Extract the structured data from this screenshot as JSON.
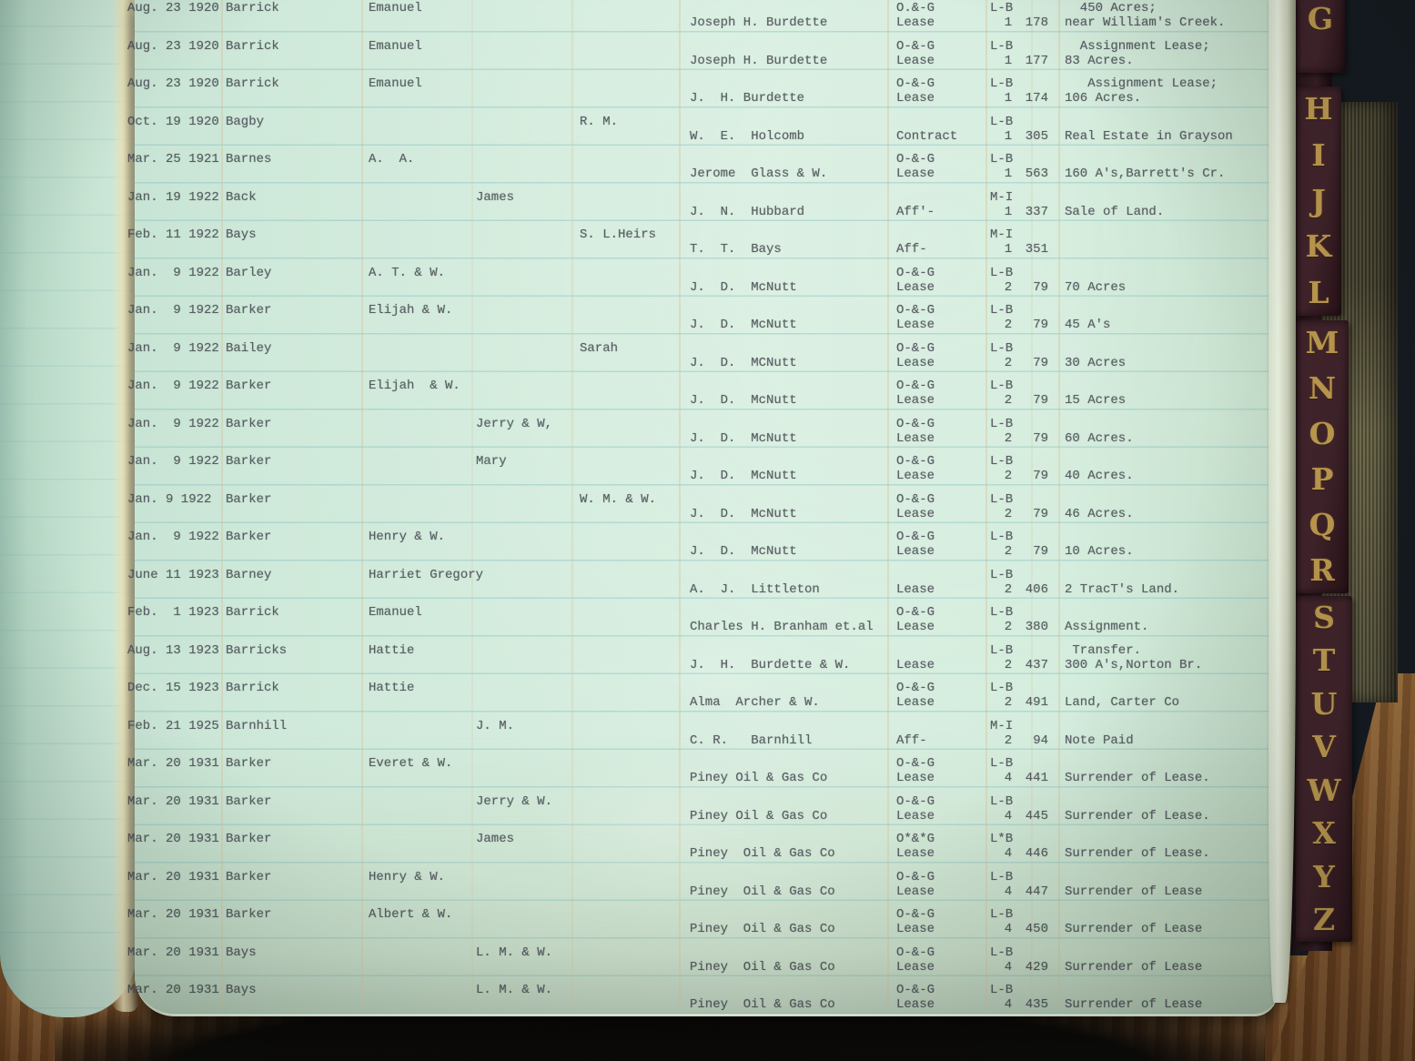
{
  "ledger": {
    "rows": [
      {
        "date": "Aug. 23 1920",
        "surname": "Barrick",
        "given_a": "Emanuel",
        "grantee": "Joseph H. Burdette",
        "instr1": "O.&-G",
        "instr2": "Lease",
        "book1": "L-B",
        "book2": "1",
        "page": "178",
        "d1": "  450 Acres;",
        "d2": "near William's Creek."
      },
      {
        "date": "Aug. 23 1920",
        "surname": "Barrick",
        "given_a": "Emanuel",
        "grantee": "Joseph H. Burdette",
        "instr1": "O-&-G",
        "instr2": "Lease",
        "book1": "L-B",
        "book2": "1",
        "page": "177",
        "d1": "  Assignment Lease;",
        "d2": "83 Acres."
      },
      {
        "date": "Aug. 23 1920",
        "surname": "Barrick",
        "given_a": "Emanuel",
        "grantee": "J.  H. Burdette",
        "instr1": "O-&-G",
        "instr2": "Lease",
        "book1": "L-B",
        "book2": "1",
        "page": "174",
        "d1": "   Assignment Lease;",
        "d2": "106 Acres."
      },
      {
        "date": "Oct. 19 1920",
        "surname": "Bagby",
        "given_c": "R. M.",
        "grantee": "W.  E.  Holcomb",
        "instr2": "Contract",
        "book1": "L-B",
        "book2": "1",
        "page": "305",
        "d2": "Real Estate in Grayson"
      },
      {
        "date": "Mar. 25 1921",
        "surname": "Barnes",
        "given_a": "A.  A.",
        "grantee": "Jerome  Glass & W.",
        "instr1": "O-&-G",
        "instr2": "Lease",
        "book1": "L-B",
        "book2": "1",
        "page": "563",
        "d2": "160 A's,Barrett's Cr."
      },
      {
        "date": "Jan. 19 1922",
        "surname": "Back",
        "given_b": "James",
        "grantee": "J.  N.  Hubbard",
        "instr2": "Aff'-",
        "book1": "M-I",
        "book2": "1",
        "page": "337",
        "d2": "Sale of Land."
      },
      {
        "date": "Feb. 11 1922",
        "surname": "Bays",
        "given_c": "S. L.Heirs",
        "grantee": "T.  T.  Bays",
        "instr2": "Aff-",
        "book1": "M-I",
        "book2": "1",
        "page": "351"
      },
      {
        "date": "Jan.  9 1922",
        "surname": "Barley",
        "given_a": "A. T. & W.",
        "grantee": "J.  D.  McNutt",
        "instr1": "O-&-G",
        "instr2": "Lease",
        "book1": "L-B",
        "book2": "2",
        "page": "79",
        "d2": "70 Acres"
      },
      {
        "date": "Jan.  9 1922",
        "surname": "Barker",
        "given_a": "Elijah & W.",
        "grantee": "J.  D.  McNutt",
        "instr1": "O-&-G",
        "instr2": "Lease",
        "book1": "L-B",
        "book2": "2",
        "page": "79",
        "d2": "45 A's"
      },
      {
        "date": "Jan.  9 1922",
        "surname": "Bailey",
        "given_c": "Sarah",
        "grantee": "J.  D.  MCNutt",
        "instr1": "O-&-G",
        "instr2": "Lease",
        "book1": "L-B",
        "book2": "2",
        "page": "79",
        "d2": "30 Acres"
      },
      {
        "date": "Jan.  9 1922",
        "surname": "Barker",
        "given_a": "Elijah  & W.",
        "grantee": "J.  D.  McNutt",
        "instr1": "O-&-G",
        "instr2": "Lease",
        "book1": "L-B",
        "book2": "2",
        "page": "79",
        "d2": "15 Acres"
      },
      {
        "date": "Jan.  9 1922",
        "surname": "Barker",
        "given_b": "Jerry & W,",
        "grantee": "J.  D.  McNutt",
        "instr1": "O-&-G",
        "instr2": "Lease",
        "book1": "L-B",
        "book2": "2",
        "page": "79",
        "d2": "60 Acres."
      },
      {
        "date": "Jan.  9 1922",
        "surname": "Barker",
        "given_b": "Mary",
        "grantee": "J.  D.  McNutt",
        "instr1": "O-&-G",
        "instr2": "Lease",
        "book1": "L-B",
        "book2": "2",
        "page": "79",
        "d2": "40 Acres."
      },
      {
        "date": "Jan. 9 1922",
        "surname": "Barker",
        "given_c": "W. M. & W.",
        "grantee": "J.  D.  McNutt",
        "instr1": "O-&-G",
        "instr2": "Lease",
        "book1": "L-B",
        "book2": "2",
        "page": "79",
        "d2": "46 Acres."
      },
      {
        "date": "Jan.  9 1922",
        "surname": "Barker",
        "given_a": "Henry & W.",
        "grantee": "J.  D.  McNutt",
        "instr1": "O-&-G",
        "instr2": "Lease",
        "book1": "L-B",
        "book2": "2",
        "page": "79",
        "d2": "10 Acres."
      },
      {
        "date": "June 11 1923",
        "surname": "Barney",
        "given_a": "Harriet Gregory",
        "grantee": "A.  J.  Littleton",
        "instr2": "Lease",
        "book1": "L-B",
        "book2": "2",
        "page": "406",
        "d2": "2 TracT's Land."
      },
      {
        "date": "Feb.  1 1923",
        "surname": "Barrick",
        "given_a": "Emanuel",
        "grantee": "Charles H. Branham et.al",
        "instr1": "O-&-G",
        "instr2": "Lease",
        "book1": "L-B",
        "book2": "2",
        "page": "380",
        "d2": "Assignment."
      },
      {
        "date": "Aug. 13 1923",
        "surname": "Barricks",
        "given_a": "Hattie",
        "grantee": "J.  H.  Burdette & W.",
        "instr2": "Lease",
        "book1": "L-B",
        "book2": "2",
        "page": "437",
        "d1": " Transfer.",
        "d2": "300 A's,Norton Br."
      },
      {
        "date": "Dec. 15 1923",
        "surname": "Barrick",
        "given_a": "Hattie",
        "grantee": "Alma  Archer & W.",
        "instr1": "O-&-G",
        "instr2": "Lease",
        "book1": "L-B",
        "book2": "2",
        "page": "491",
        "d2": "Land, Carter Co"
      },
      {
        "date": "Feb. 21 1925",
        "surname": "Barnhill",
        "given_b": "J. M.",
        "grantee": "C. R.   Barnhill",
        "instr2": "Aff-",
        "book1": "M-I",
        "book2": "2",
        "page": "94",
        "d2": "Note Paid"
      },
      {
        "date": "Mar. 20 1931",
        "surname": "Barker",
        "given_a": "Everet & W.",
        "grantee": "Piney Oil & Gas Co",
        "instr1": "O-&-G",
        "instr2": "Lease",
        "book1": "L-B",
        "book2": "4",
        "page": "441",
        "d2": "Surrender of Lease."
      },
      {
        "date": "Mar. 20 1931",
        "surname": "Barker",
        "given_b": "Jerry & W.",
        "grantee": "Piney Oil & Gas Co",
        "instr1": "O-&-G",
        "instr2": "Lease",
        "book1": "L-B",
        "book2": "4",
        "page": "445",
        "d2": "Surrender of Lease."
      },
      {
        "date": "Mar. 20 1931",
        "surname": "Barker",
        "given_b": "James",
        "grantee": "Piney  Oil & Gas Co",
        "instr1": "O*&*G",
        "instr2": "Lease",
        "book1": "L*B",
        "book2": "4",
        "page": "446",
        "d2": "Surrender of Lease."
      },
      {
        "date": "Mar. 20 1931",
        "surname": "Barker",
        "given_a": "Henry & W.",
        "grantee": "Piney  Oil & Gas Co",
        "instr1": "O-&-G",
        "instr2": "Lease",
        "book1": "L-B",
        "book2": "4",
        "page": "447",
        "d2": "Surrender of Lease"
      },
      {
        "date": "Mar. 20 1931",
        "surname": "Barker",
        "given_a": "Albert & W.",
        "grantee": "Piney  Oil & Gas Co",
        "instr1": "O-&-G",
        "instr2": "Lease",
        "book1": "L-B",
        "book2": "4",
        "page": "450",
        "d2": "Surrender of Lease"
      },
      {
        "date": "Mar. 20 1931",
        "surname": "Bays",
        "given_b": "L. M. & W.",
        "grantee": "Piney  Oil & Gas Co",
        "instr1": "O-&-G",
        "instr2": "Lease",
        "book1": "L-B",
        "book2": "4",
        "page": "429",
        "d2": "Surrender of Lease"
      },
      {
        "date": "Mar. 20 1931",
        "surname": "Bays",
        "given_b": "L. M. & W.",
        "grantee": "Piney  Oil & Gas Co",
        "instr1": "O-&-G",
        "instr2": "Lease",
        "book1": "L-B",
        "book2": "4",
        "page": "435",
        "d2": "Surrender of Lease"
      }
    ]
  },
  "spine": {
    "tabs": [
      {
        "letters": [
          "G"
        ]
      },
      {
        "letters": [
          "H",
          "I",
          "J",
          "K",
          "L"
        ]
      },
      {
        "letters": [
          "M",
          "N",
          "O",
          "P",
          "Q",
          "R"
        ]
      },
      {
        "letters": [
          "S",
          "T",
          "U",
          "V",
          "W",
          "X",
          "Y",
          "Z"
        ]
      }
    ]
  },
  "colors": {
    "paper": "#cfe9da",
    "ink": "#44474f",
    "rule_teal": "#6fb3b8",
    "rule_cream": "#d3c49d",
    "tab_leather": "#33191f",
    "tab_gold": "#c9a455",
    "cloth": "#6f6a4b",
    "wood_light": "#9a6a38",
    "wood_dark": "#6e4220",
    "background": "#151b21",
    "shadow": "#0b0907"
  }
}
